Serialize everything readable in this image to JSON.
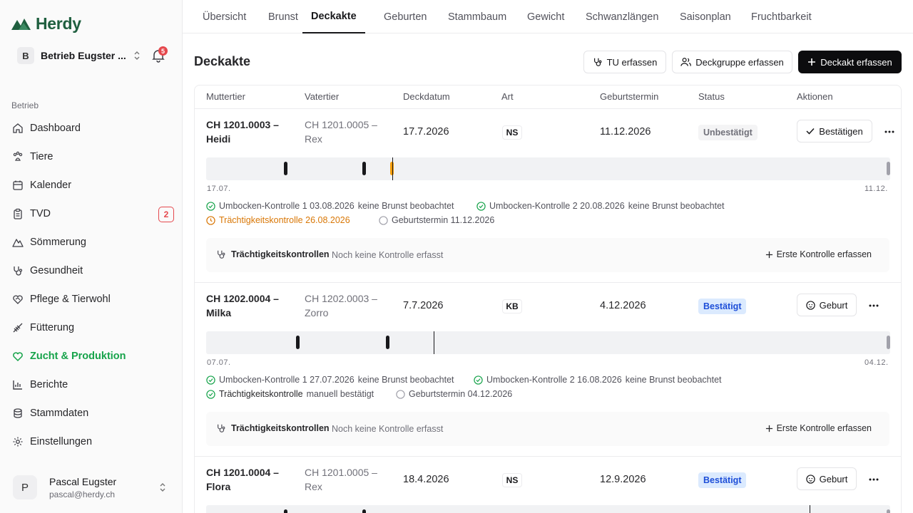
{
  "brand": {
    "name": "Herdy",
    "color": "#1f5f3f"
  },
  "farm": {
    "initial": "B",
    "name": "Betrieb Eugster ...",
    "notifications": "5"
  },
  "nav": {
    "group": "Betrieb",
    "items": [
      {
        "label": "Dashboard",
        "icon": "home-icon"
      },
      {
        "label": "Tiere",
        "icon": "paw-icon"
      },
      {
        "label": "Kalender",
        "icon": "calendar-icon"
      },
      {
        "label": "TVD",
        "icon": "clipboard-icon",
        "badge": "2"
      },
      {
        "label": "Sömmerung",
        "icon": "mountain-icon"
      },
      {
        "label": "Gesundheit",
        "icon": "stethoscope-icon"
      },
      {
        "label": "Pflege & Tierwohl",
        "icon": "heart-icon"
      },
      {
        "label": "Fütterung",
        "icon": "wheat-icon"
      },
      {
        "label": "Zucht & Produktion",
        "icon": "heart-icon",
        "active": true
      },
      {
        "label": "Berichte",
        "icon": "bar-chart-icon"
      },
      {
        "label": "Stammdaten",
        "icon": "database-icon"
      },
      {
        "label": "Einstellungen",
        "icon": "gear-icon"
      }
    ]
  },
  "user": {
    "initial": "P",
    "name": "Pascal Eugster",
    "email": "pascal@herdy.ch"
  },
  "tabs": [
    "Übersicht",
    "Brunst",
    "Deckakte",
    "Geburten",
    "Stammbaum",
    "Gewicht",
    "Schwanzlängen",
    "Saisonplan",
    "Fruchtbarkeit"
  ],
  "active_tab": "Deckakte",
  "page": {
    "title": "Deckakte",
    "btn_tu": "TU erfassen",
    "btn_group": "Deckgruppe erfassen",
    "btn_add": "Deckakt erfassen"
  },
  "columns": [
    "Muttertier",
    "Vatertier",
    "Deckdatum",
    "Art",
    "Geburtstermin",
    "Status",
    "Aktionen"
  ],
  "rows": [
    {
      "mother": "CH 1201.0003 –",
      "mother2": "Heidi",
      "father": "CH 1201.0005 –",
      "father2": "Rex",
      "date": "17.7.2026",
      "art": "NS",
      "birth": "11.12.2026",
      "status": "Unbestätigt",
      "action": "Bestätigen",
      "tl_start": "17.07.",
      "tl_end": "11.12.",
      "events": [
        {
          "label": "Umbocken-Kontrolle 1 03.08.2026",
          "state": "keine Brunst beobachtet"
        },
        {
          "label": "Umbocken-Kontrolle 2 20.08.2026",
          "state": "keine Brunst beobachtet"
        },
        {
          "label": "Trächtigkeitskontrolle 26.08.2026",
          "state": ""
        },
        {
          "label": "Geburtstermin 11.12.2026",
          "state": ""
        }
      ]
    },
    {
      "mother": "CH 1202.0004 –",
      "mother2": "Milka",
      "father": "CH 1202.0003 –",
      "father2": "Zorro",
      "date": "7.7.2026",
      "art": "KB",
      "birth": "4.12.2026",
      "status": "Bestätigt",
      "action": "Geburt",
      "tl_start": "07.07.",
      "tl_end": "04.12.",
      "events": [
        {
          "label": "Umbocken-Kontrolle 1 27.07.2026",
          "state": "keine Brunst beobachtet"
        },
        {
          "label": "Umbocken-Kontrolle 2 16.08.2026",
          "state": "keine Brunst beobachtet"
        },
        {
          "label": "Trächtigkeitskontrolle",
          "state": "manuell bestätigt"
        },
        {
          "label": "Geburtstermin 04.12.2026",
          "state": ""
        }
      ]
    },
    {
      "mother": "CH 1201.0004 –",
      "mother2": "Flora",
      "father": "CH 1201.0005 –",
      "father2": "Rex",
      "date": "18.4.2026",
      "art": "NS",
      "birth": "12.9.2026",
      "status": "Bestätigt",
      "action": "Geburt"
    }
  ],
  "controls": {
    "label": "Trächtigkeitskontrollen",
    "empty": "Noch keine Kontrolle erfasst",
    "add": "Erste Kontrolle erfassen"
  },
  "colors": {
    "accent_green": "#16a34a",
    "warning": "#d97706",
    "danger": "#e5484d",
    "status_blue": "#1d4ed8"
  }
}
